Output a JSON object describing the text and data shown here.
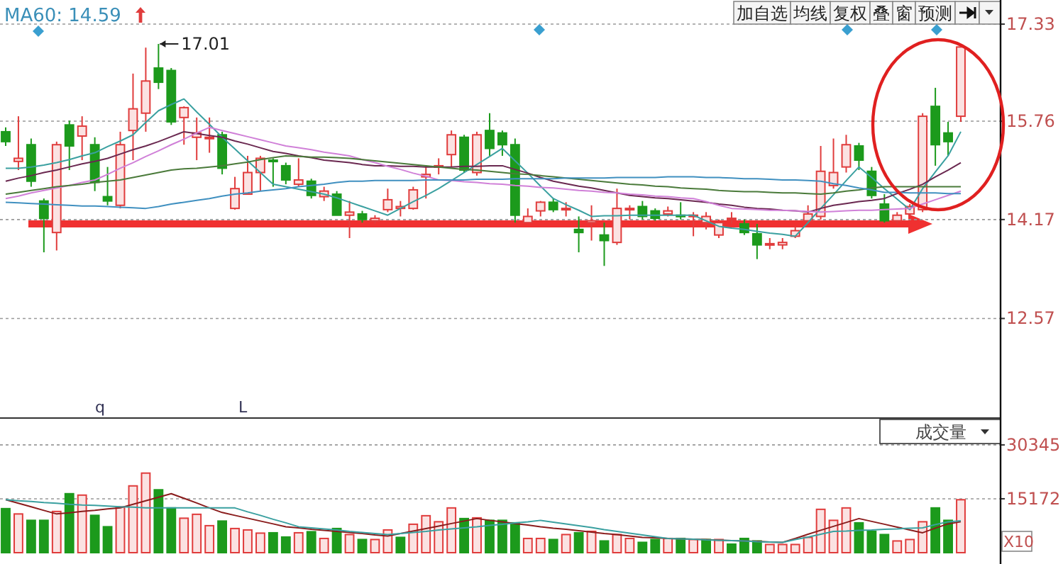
{
  "chart_data": [
    {
      "type": "candlestick",
      "categories": [
        null,
        null,
        null,
        null,
        null,
        null,
        null,
        null,
        null,
        null,
        null,
        null,
        null,
        null,
        null,
        null,
        null,
        null,
        null,
        null,
        null,
        null,
        null,
        null,
        null,
        null,
        null,
        null,
        null,
        null,
        null,
        null,
        null,
        null,
        null,
        null,
        null,
        null,
        null,
        null,
        null,
        null,
        null,
        null,
        null,
        null,
        null,
        null,
        null,
        null,
        null,
        null,
        null,
        null,
        null,
        null,
        null,
        null,
        null,
        null,
        null,
        null,
        null,
        null,
        null,
        null,
        null,
        null,
        null,
        null,
        null,
        null,
        null,
        null,
        null,
        null
      ],
      "ylim": [
        10.96,
        17.72
      ],
      "yticks": [
        17.33,
        15.76,
        14.17,
        12.57
      ],
      "tick_labels": "y",
      "grid": "y",
      "ohlc": [
        [
          15.59,
          15.66,
          15.36,
          15.43
        ],
        [
          15.11,
          15.84,
          14.97,
          15.16
        ],
        [
          15.38,
          15.48,
          14.7,
          14.79
        ],
        [
          14.47,
          14.51,
          13.64,
          14.19
        ],
        [
          13.96,
          15.43,
          13.67,
          15.38
        ],
        [
          15.7,
          15.77,
          14.97,
          15.36
        ],
        [
          15.52,
          15.84,
          15.13,
          15.68
        ],
        [
          15.38,
          15.5,
          14.63,
          14.77
        ],
        [
          14.54,
          15.02,
          14.4,
          14.47
        ],
        [
          14.4,
          15.59,
          14.35,
          15.38
        ],
        [
          15.61,
          16.53,
          15.13,
          15.96
        ],
        [
          15.89,
          16.95,
          15.59,
          16.41
        ],
        [
          16.62,
          17.01,
          16.28,
          16.39
        ],
        [
          16.58,
          16.62,
          15.7,
          15.75
        ],
        [
          15.82,
          16.0,
          15.38,
          15.98
        ],
        [
          15.5,
          15.82,
          15.13,
          15.57
        ],
        [
          15.48,
          15.82,
          15.25,
          15.5
        ],
        [
          15.54,
          15.59,
          14.9,
          15.0
        ],
        [
          14.35,
          14.86,
          14.33,
          14.67
        ],
        [
          14.58,
          15.2,
          14.58,
          14.93
        ],
        [
          14.93,
          15.2,
          14.63,
          15.16
        ],
        [
          15.13,
          15.16,
          14.7,
          15.11
        ],
        [
          15.04,
          15.09,
          14.74,
          14.81
        ],
        [
          14.74,
          15.16,
          14.7,
          14.81
        ],
        [
          14.79,
          14.83,
          14.51,
          14.56
        ],
        [
          14.54,
          14.7,
          14.47,
          14.63
        ],
        [
          14.58,
          14.63,
          14.24,
          14.24
        ],
        [
          14.24,
          14.47,
          13.87,
          14.29
        ],
        [
          14.26,
          14.31,
          14.12,
          14.17
        ],
        [
          14.15,
          14.24,
          14.1,
          14.19
        ],
        [
          14.33,
          14.67,
          14.29,
          14.49
        ],
        [
          14.35,
          14.47,
          14.22,
          14.38
        ],
        [
          14.35,
          14.7,
          14.33,
          14.65
        ],
        [
          14.86,
          15.02,
          14.51,
          14.9
        ],
        [
          15.02,
          15.16,
          14.9,
          15.04
        ],
        [
          15.22,
          15.61,
          15.02,
          15.54
        ],
        [
          15.5,
          15.54,
          14.93,
          14.97
        ],
        [
          14.93,
          15.59,
          14.88,
          15.54
        ],
        [
          15.61,
          15.89,
          15.2,
          15.32
        ],
        [
          15.57,
          15.61,
          15.2,
          15.38
        ],
        [
          15.38,
          15.48,
          14.12,
          14.24
        ],
        [
          14.12,
          14.35,
          14.12,
          14.22
        ],
        [
          14.31,
          14.47,
          14.22,
          14.45
        ],
        [
          14.45,
          14.51,
          14.29,
          14.33
        ],
        [
          14.33,
          14.45,
          14.22,
          14.35
        ],
        [
          14.01,
          14.22,
          13.64,
          13.96
        ],
        [
          14.12,
          14.4,
          13.83,
          14.15
        ],
        [
          13.92,
          14.12,
          13.42,
          13.83
        ],
        [
          13.8,
          14.67,
          13.76,
          14.35
        ],
        [
          14.33,
          14.4,
          14.17,
          14.35
        ],
        [
          14.38,
          14.47,
          14.17,
          14.22
        ],
        [
          14.31,
          14.35,
          14.15,
          14.19
        ],
        [
          14.26,
          14.38,
          14.22,
          14.31
        ],
        [
          14.24,
          14.45,
          14.17,
          14.22
        ],
        [
          14.22,
          14.29,
          13.9,
          14.24
        ],
        [
          14.12,
          14.29,
          14.01,
          14.22
        ],
        [
          13.92,
          14.17,
          13.87,
          14.12
        ],
        [
          14.17,
          14.29,
          14.1,
          14.19
        ],
        [
          14.1,
          14.17,
          13.92,
          13.96
        ],
        [
          13.94,
          14.1,
          13.53,
          13.76
        ],
        [
          13.76,
          13.87,
          13.69,
          13.78
        ],
        [
          13.76,
          13.87,
          13.69,
          13.8
        ],
        [
          13.9,
          14.06,
          13.87,
          13.99
        ],
        [
          14.15,
          14.4,
          14.1,
          14.26
        ],
        [
          14.22,
          15.36,
          14.17,
          14.95
        ],
        [
          14.72,
          15.48,
          14.67,
          14.93
        ],
        [
          15.02,
          15.54,
          14.93,
          15.38
        ],
        [
          15.36,
          15.41,
          14.97,
          15.13
        ],
        [
          14.95,
          15.02,
          14.51,
          14.56
        ],
        [
          14.42,
          14.58,
          14.12,
          14.15
        ],
        [
          14.15,
          14.29,
          14.1,
          14.24
        ],
        [
          14.26,
          14.42,
          14.22,
          14.38
        ],
        [
          14.33,
          15.89,
          14.29,
          15.84
        ],
        [
          16.0,
          16.3,
          15.04,
          15.38
        ],
        [
          15.57,
          15.75,
          15.2,
          15.43
        ],
        [
          15.84,
          16.96,
          15.75,
          16.96
        ]
      ],
      "series": [
        {
          "type": "line",
          "color": "#3aa0a0",
          "values": [
            15.0,
            15.0,
            15.02,
            15.05,
            15.09,
            15.14,
            15.2,
            15.25,
            15.35,
            15.44,
            15.54,
            15.74,
            15.93,
            16.03,
            16.12,
            15.91,
            15.71,
            15.5,
            15.31,
            15.12,
            14.93,
            14.74,
            14.7,
            14.66,
            14.62,
            14.58,
            14.52,
            14.45,
            14.38,
            14.31,
            14.24,
            14.35,
            14.46,
            14.56,
            14.67,
            14.8,
            14.93,
            15.06,
            15.19,
            15.32,
            15.12,
            14.92,
            14.71,
            14.51,
            14.41,
            14.32,
            14.22,
            14.23,
            14.23,
            14.24,
            14.24,
            14.24,
            14.24,
            14.24,
            14.24,
            14.15,
            14.06,
            14.03,
            14.01,
            13.98,
            13.95,
            13.93,
            13.9,
            14.12,
            14.35,
            14.57,
            14.8,
            15.02,
            14.85,
            14.67,
            14.5,
            14.33,
            14.67,
            14.94,
            15.2,
            15.59
          ]
        },
        {
          "type": "line",
          "color": "#6a2850",
          "values": [
            14.79,
            14.84,
            14.88,
            14.93,
            14.97,
            15.02,
            15.07,
            15.11,
            15.16,
            15.23,
            15.3,
            15.36,
            15.43,
            15.51,
            15.59,
            15.56,
            15.53,
            15.5,
            15.44,
            15.39,
            15.33,
            15.27,
            15.24,
            15.2,
            15.17,
            15.13,
            15.11,
            15.09,
            15.06,
            15.04,
            15.04,
            15.03,
            15.03,
            15.02,
            15.02,
            15.02,
            15.03,
            15.03,
            15.04,
            15.04,
            14.98,
            14.92,
            14.85,
            14.79,
            14.75,
            14.71,
            14.68,
            14.64,
            14.6,
            14.56,
            14.54,
            14.52,
            14.51,
            14.49,
            14.47,
            14.45,
            14.42,
            14.4,
            14.37,
            14.35,
            14.34,
            14.32,
            14.31,
            14.29,
            14.35,
            14.4,
            14.43,
            14.46,
            14.48,
            14.51,
            14.59,
            14.66,
            14.74,
            14.86,
            14.97,
            15.09
          ]
        },
        {
          "type": "line",
          "color": "#d080d8",
          "values": [
            14.51,
            14.55,
            14.6,
            14.64,
            14.68,
            14.72,
            14.77,
            14.81,
            14.9,
            15.0,
            15.09,
            15.19,
            15.28,
            15.38,
            15.47,
            15.57,
            15.66,
            15.61,
            15.56,
            15.51,
            15.46,
            15.41,
            15.36,
            15.33,
            15.3,
            15.26,
            15.23,
            15.2,
            15.14,
            15.09,
            15.03,
            14.98,
            14.92,
            14.87,
            14.81,
            14.8,
            14.78,
            14.77,
            14.75,
            14.74,
            14.72,
            14.71,
            14.69,
            14.68,
            14.66,
            14.64,
            14.63,
            14.61,
            14.6,
            14.58,
            14.57,
            14.55,
            14.54,
            14.52,
            14.51,
            14.46,
            14.4,
            14.35,
            14.34,
            14.33,
            14.32,
            14.32,
            14.31,
            14.3,
            14.29,
            14.3,
            14.31,
            14.32,
            14.32,
            14.33,
            14.34,
            14.35,
            14.42,
            14.49,
            14.56,
            14.63
          ]
        },
        {
          "type": "line",
          "color": "#4a7a3a",
          "values": [
            14.58,
            14.61,
            14.64,
            14.67,
            14.7,
            14.72,
            14.74,
            14.77,
            14.79,
            14.81,
            14.85,
            14.89,
            14.93,
            14.97,
            14.99,
            15.0,
            15.02,
            15.04,
            15.07,
            15.1,
            15.14,
            15.17,
            15.2,
            15.19,
            15.18,
            15.18,
            15.17,
            15.16,
            15.14,
            15.12,
            15.1,
            15.08,
            15.06,
            15.04,
            15.02,
            15.0,
            14.98,
            14.97,
            14.95,
            14.93,
            14.91,
            14.9,
            14.88,
            14.86,
            14.84,
            14.82,
            14.8,
            14.78,
            14.76,
            14.74,
            14.73,
            14.71,
            14.7,
            14.68,
            14.67,
            14.66,
            14.64,
            14.63,
            14.62,
            14.62,
            14.61,
            14.6,
            14.6,
            14.59,
            14.58,
            14.6,
            14.63,
            14.65,
            14.68,
            14.7,
            14.7,
            14.7,
            14.7,
            14.7,
            14.7,
            14.7
          ]
        },
        {
          "type": "line",
          "color": "#4090c0",
          "values": [
            14.45,
            14.44,
            14.43,
            14.42,
            14.41,
            14.4,
            14.39,
            14.39,
            14.38,
            14.37,
            14.36,
            14.35,
            14.38,
            14.42,
            14.45,
            14.48,
            14.51,
            14.55,
            14.58,
            14.6,
            14.63,
            14.65,
            14.67,
            14.7,
            14.72,
            14.74,
            14.77,
            14.79,
            14.79,
            14.8,
            14.8,
            14.8,
            14.8,
            14.81,
            14.81,
            14.81,
            14.81,
            14.82,
            14.82,
            14.82,
            14.83,
            14.83,
            14.83,
            14.83,
            14.84,
            14.84,
            14.84,
            14.84,
            14.85,
            14.85,
            14.85,
            14.85,
            14.86,
            14.86,
            14.86,
            14.85,
            14.85,
            14.84,
            14.83,
            14.83,
            14.82,
            14.81,
            14.81,
            14.8,
            14.79,
            14.75,
            14.72,
            14.68,
            14.65,
            14.61,
            14.61,
            14.6,
            14.6,
            14.6,
            14.59,
            14.59
          ]
        }
      ],
      "annotations": [
        "MA60: 14.59",
        "17.01",
        "q",
        "L",
        "加自选",
        "均线",
        "复权",
        "叠",
        "窗",
        "预测"
      ]
    },
    {
      "type": "bar",
      "categories": [
        null,
        null,
        null,
        null,
        null,
        null,
        null,
        null,
        null,
        null,
        null,
        null,
        null,
        null,
        null,
        null,
        null,
        null,
        null,
        null,
        null,
        null,
        null,
        null,
        null,
        null,
        null,
        null,
        null,
        null,
        null,
        null,
        null,
        null,
        null,
        null,
        null,
        null,
        null,
        null,
        null,
        null,
        null,
        null,
        null,
        null,
        null,
        null,
        null,
        null,
        null,
        null,
        null,
        null,
        null,
        null,
        null,
        null,
        null,
        null,
        null,
        null,
        null,
        null,
        null,
        null,
        null,
        null,
        null,
        null,
        null,
        null,
        null,
        null,
        null,
        null
      ],
      "ylim": [
        0,
        37900
      ],
      "yticks": [
        15172,
        30345
      ],
      "tick_labels": "y",
      "grid": "y",
      "series": [
        {
          "type": "bar",
          "values": [
            12400,
            10900,
            9100,
            9100,
            11600,
            16600,
            16200,
            10500,
            7300,
            12900,
            18800,
            22400,
            17700,
            12600,
            9700,
            10800,
            7600,
            8900,
            6800,
            6400,
            5500,
            5600,
            4400,
            5600,
            5900,
            4000,
            6800,
            5100,
            3700,
            3700,
            6400,
            4300,
            8000,
            10400,
            8700,
            12600,
            9600,
            9800,
            9100,
            9100,
            8400,
            4000,
            4000,
            3700,
            5100,
            5600,
            6000,
            3300,
            5100,
            4000,
            2900,
            3700,
            4000,
            4000,
            3700,
            3700,
            3700,
            2400,
            4000,
            3300,
            2300,
            2300,
            2300,
            4300,
            12200,
            9100,
            12600,
            8400,
            6000,
            5100,
            3300,
            3700,
            8700,
            12600,
            9100,
            14900
          ],
          "colors": [
            "#1c9a1c",
            "#e03c3c",
            "#1c9a1c",
            "#1c9a1c",
            "#e03c3c",
            "#1c9a1c",
            "#e03c3c",
            "#1c9a1c",
            "#1c9a1c",
            "#e03c3c",
            "#e03c3c",
            "#e03c3c",
            "#1c9a1c",
            "#1c9a1c",
            "#e03c3c",
            "#e03c3c",
            "#e03c3c",
            "#1c9a1c",
            "#e03c3c",
            "#e03c3c",
            "#e03c3c",
            "#1c9a1c",
            "#1c9a1c",
            "#e03c3c",
            "#1c9a1c",
            "#e03c3c",
            "#1c9a1c",
            "#e03c3c",
            "#1c9a1c",
            "#e03c3c",
            "#e03c3c",
            "#1c9a1c",
            "#e03c3c",
            "#e03c3c",
            "#e03c3c",
            "#e03c3c",
            "#1c9a1c",
            "#e03c3c",
            "#1c9a1c",
            "#1c9a1c",
            "#1c9a1c",
            "#e03c3c",
            "#e03c3c",
            "#1c9a1c",
            "#e03c3c",
            "#1c9a1c",
            "#e03c3c",
            "#1c9a1c",
            "#e03c3c",
            "#e03c3c",
            "#1c9a1c",
            "#1c9a1c",
            "#e03c3c",
            "#1c9a1c",
            "#e03c3c",
            "#1c9a1c",
            "#e03c3c",
            "#1c9a1c",
            "#1c9a1c",
            "#1c9a1c",
            "#e03c3c",
            "#e03c3c",
            "#e03c3c",
            "#e03c3c",
            "#e03c3c",
            "#e03c3c",
            "#e03c3c",
            "#1c9a1c",
            "#1c9a1c",
            "#1c9a1c",
            "#e03c3c",
            "#e03c3c",
            "#e03c3c",
            "#1c9a1c",
            "#1c9a1c",
            "#e03c3c"
          ]
        },
        {
          "type": "line",
          "color": "#8a1c1c",
          "values": [
            14900,
            13900,
            12900,
            11900,
            10900,
            11200,
            11600,
            11900,
            12300,
            12600,
            13600,
            14600,
            15600,
            16600,
            15300,
            14000,
            12600,
            11300,
            10500,
            9700,
            8900,
            8100,
            7300,
            7000,
            6600,
            6300,
            6000,
            5700,
            5400,
            5000,
            4700,
            5400,
            6100,
            6800,
            7500,
            8200,
            8900,
            9600,
            9100,
            8700,
            8200,
            7800,
            7300,
            6900,
            6600,
            6200,
            5800,
            5400,
            5100,
            4700,
            4300,
            4200,
            4000,
            3900,
            3800,
            3700,
            3500,
            3400,
            3300,
            3200,
            3000,
            2900,
            4000,
            5200,
            6300,
            7400,
            8500,
            9600,
            8800,
            8000,
            7200,
            6400,
            5600,
            6900,
            8100,
            8700
          ]
        },
        {
          "type": "line",
          "color": "#3aa0a0",
          "values": [
            14900,
            14600,
            14400,
            14100,
            13900,
            13600,
            13400,
            13300,
            13100,
            12900,
            12800,
            12600,
            12600,
            12600,
            12600,
            12600,
            12600,
            12600,
            12600,
            11500,
            10500,
            9400,
            8400,
            7300,
            7000,
            6700,
            6400,
            6000,
            5700,
            5400,
            5100,
            5400,
            5700,
            6000,
            6400,
            6700,
            7000,
            7300,
            7700,
            8000,
            8400,
            8700,
            9100,
            8600,
            8100,
            7600,
            7100,
            6500,
            6000,
            5500,
            5000,
            4500,
            4000,
            3900,
            3800,
            3600,
            3500,
            3400,
            3300,
            3100,
            3000,
            2900,
            3700,
            4400,
            5200,
            6000,
            6100,
            6300,
            6400,
            6600,
            6700,
            6900,
            7000,
            7900,
            8700,
            9000
          ]
        }
      ],
      "annotations": [
        "成交量",
        "X10"
      ]
    }
  ]
}
